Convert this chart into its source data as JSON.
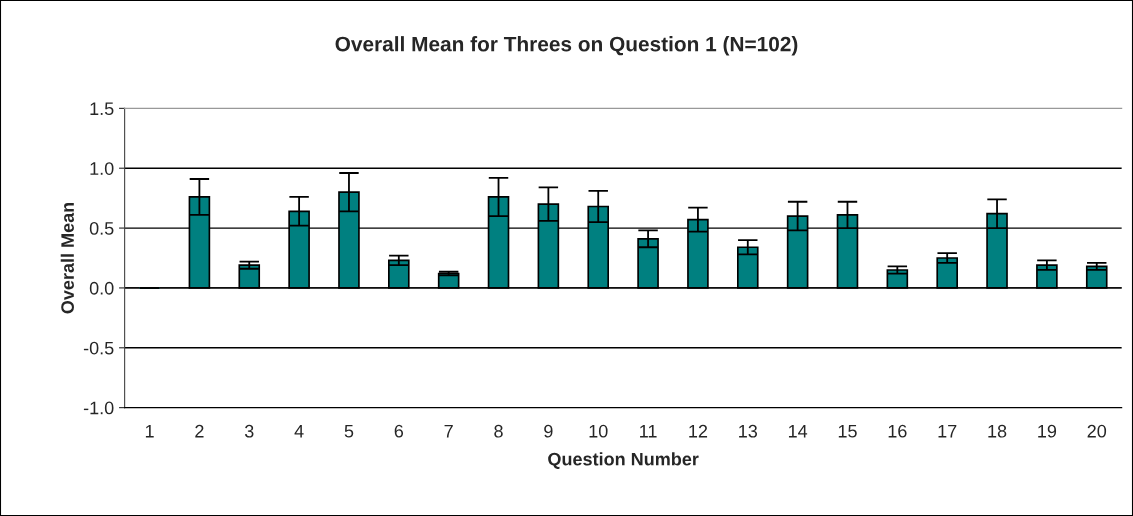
{
  "chart_data": {
    "type": "bar",
    "title": "Overall Mean for Threes on Question 1 (N=102)",
    "xlabel": "Question Number",
    "ylabel": "Overall Mean",
    "categories": [
      "1",
      "2",
      "3",
      "4",
      "5",
      "6",
      "7",
      "8",
      "9",
      "10",
      "11",
      "12",
      "13",
      "14",
      "15",
      "16",
      "17",
      "18",
      "19",
      "20"
    ],
    "values": [
      0,
      0.76,
      0.19,
      0.64,
      0.8,
      0.23,
      0.12,
      0.76,
      0.7,
      0.68,
      0.41,
      0.57,
      0.34,
      0.6,
      0.61,
      0.15,
      0.25,
      0.62,
      0.19,
      0.18
    ],
    "errors": [
      0,
      0.15,
      0.03,
      0.12,
      0.16,
      0.04,
      0.015,
      0.16,
      0.14,
      0.13,
      0.07,
      0.1,
      0.06,
      0.12,
      0.11,
      0.03,
      0.04,
      0.12,
      0.04,
      0.03
    ],
    "color": "#008080",
    "ylim": [
      -1.0,
      1.5
    ],
    "yticks": [
      {
        "value": -1.0,
        "label": "-1.0"
      },
      {
        "value": -0.5,
        "label": "-0.5"
      },
      {
        "value": 0,
        "label": "0.0"
      },
      {
        "value": 0.5,
        "label": "0.5"
      },
      {
        "value": 1.0,
        "label": "1.0"
      },
      {
        "value": 1.5,
        "label": "1.5"
      }
    ],
    "grid": "y",
    "legend": false
  }
}
